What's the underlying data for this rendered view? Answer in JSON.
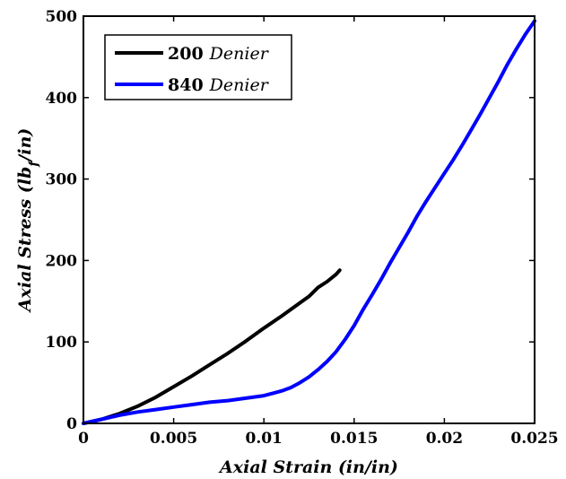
{
  "chart_data": {
    "type": "line",
    "title": "",
    "xlabel_parts": [
      "Axial Strain",
      " (in/in)"
    ],
    "ylabel_parts": [
      "Axial Stress (lb",
      "f",
      "/in)"
    ],
    "xlim": [
      0,
      0.025
    ],
    "ylim": [
      0,
      500
    ],
    "xticks": [
      0,
      0.005,
      0.01,
      0.015,
      0.02,
      0.025
    ],
    "xtick_labels": [
      "0",
      "0.005",
      "0.01",
      "0.015",
      "0.02",
      "0.025"
    ],
    "yticks": [
      0,
      100,
      200,
      300,
      400,
      500
    ],
    "ytick_labels": [
      "0",
      "100",
      "200",
      "300",
      "400",
      "500"
    ],
    "grid": false,
    "legend_position": "top-left",
    "series": [
      {
        "name": "200 Denier",
        "label_number": "200",
        "label_word": "Denier",
        "color": "#000000",
        "x": [
          0,
          0.001,
          0.002,
          0.003,
          0.004,
          0.005,
          0.006,
          0.007,
          0.008,
          0.009,
          0.01,
          0.011,
          0.012,
          0.0125,
          0.013,
          0.0135,
          0.014,
          0.0142
        ],
        "y": [
          0,
          5,
          12,
          21,
          32,
          45,
          58,
          72,
          86,
          101,
          117,
          132,
          148,
          156,
          167,
          174,
          183,
          188
        ]
      },
      {
        "name": "840 Denier",
        "label_number": "840",
        "label_word": "Denier",
        "color": "#0000ff",
        "x": [
          0,
          0.001,
          0.002,
          0.003,
          0.004,
          0.005,
          0.006,
          0.007,
          0.008,
          0.009,
          0.01,
          0.0105,
          0.011,
          0.0115,
          0.012,
          0.0125,
          0.013,
          0.0135,
          0.014,
          0.0145,
          0.015,
          0.0155,
          0.016,
          0.0165,
          0.017,
          0.0175,
          0.018,
          0.0185,
          0.019,
          0.0195,
          0.02,
          0.0205,
          0.021,
          0.0215,
          0.022,
          0.0225,
          0.023,
          0.0235,
          0.024,
          0.0245,
          0.025
        ],
        "y": [
          0,
          5,
          10,
          14,
          17,
          20,
          23,
          26,
          28,
          31,
          34,
          37,
          40,
          44,
          50,
          57,
          66,
          76,
          88,
          103,
          120,
          140,
          158,
          177,
          197,
          216,
          235,
          255,
          273,
          290,
          307,
          324,
          342,
          361,
          380,
          400,
          420,
          441,
          460,
          478,
          494
        ]
      }
    ]
  }
}
